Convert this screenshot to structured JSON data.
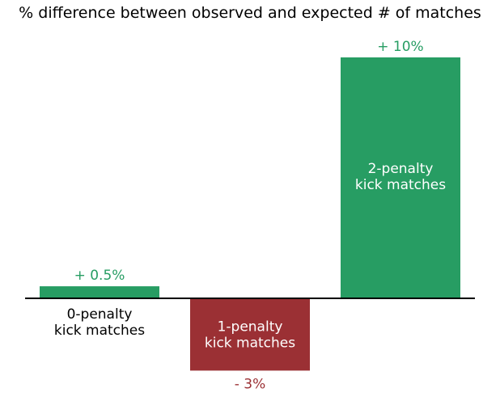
{
  "chart_data": {
    "type": "bar",
    "title": "% difference between observed and expected # of matches",
    "categories": [
      [
        "0-penalty",
        "kick matches"
      ],
      [
        "1-penalty",
        "kick matches"
      ],
      [
        "2-penalty",
        "kick matches"
      ]
    ],
    "values": [
      0.5,
      -3,
      10
    ],
    "value_labels": [
      "+ 0.5%",
      "- 3%",
      "+ 10%"
    ],
    "bar_colors": [
      "#279d63",
      "#9b3034",
      "#279d63"
    ],
    "category_label_colors": [
      "#000000",
      "#ffffff",
      "#ffffff"
    ],
    "ylim": [
      -3,
      10
    ],
    "xlabel": "",
    "ylabel": "",
    "grid": false,
    "legend": "none",
    "baseline_color": "#000000"
  }
}
